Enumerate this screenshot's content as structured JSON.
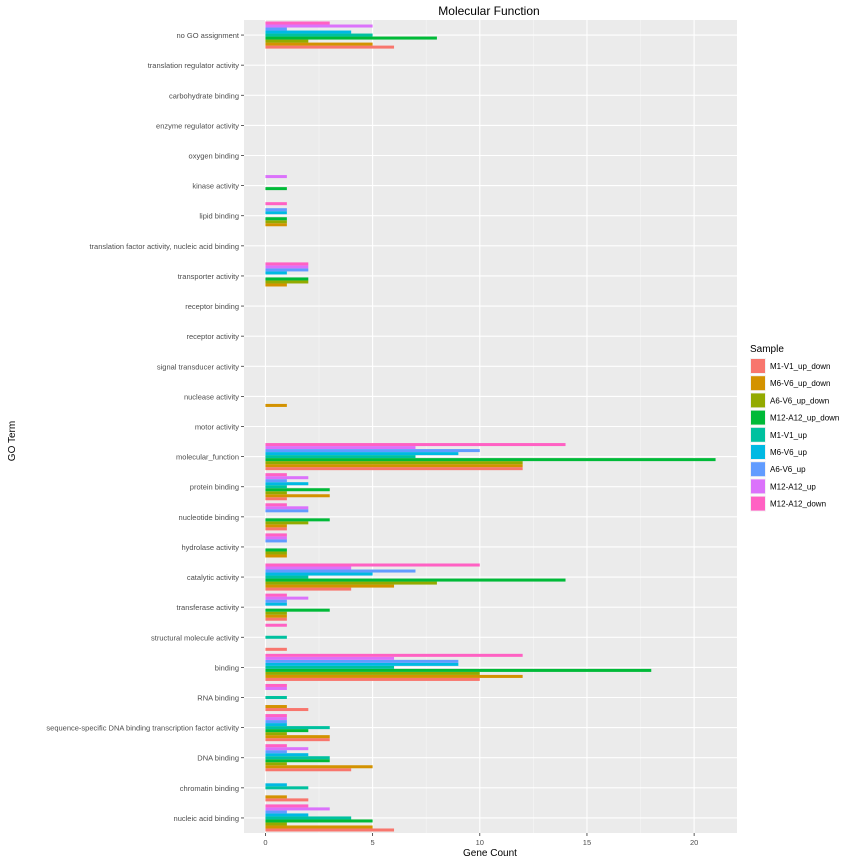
{
  "chart_data": {
    "type": "bar",
    "orientation": "horizontal",
    "title": "Molecular Function",
    "xlabel": "Gene Count",
    "ylabel": "GO Term",
    "xlim": [
      -1,
      22
    ],
    "xticks": [
      0,
      5,
      10,
      15,
      20
    ],
    "grid": true,
    "legend_title": "Sample",
    "legend_position": "right",
    "categories": [
      "nucleic acid binding",
      "chromatin binding",
      "DNA binding",
      "sequence-specific DNA binding transcription factor activity",
      "RNA binding",
      "binding",
      "structural molecule activity",
      "transferase activity",
      "catalytic activity",
      "hydrolase activity",
      "nucleotide binding",
      "protein binding",
      "molecular_function",
      "motor activity",
      "nuclease activity",
      "signal transducer activity",
      "receptor activity",
      "receptor binding",
      "transporter activity",
      "translation factor activity, nucleic acid binding",
      "lipid binding",
      "kinase activity",
      "oxygen binding",
      "enzyme regulator activity",
      "carbohydrate binding",
      "translation regulator activity",
      "no GO assignment"
    ],
    "series": [
      {
        "name": "M1-V1_up_down",
        "color": "#F8766D",
        "values": [
          6,
          2,
          4,
          3,
          2,
          10,
          1,
          1,
          4,
          0,
          1,
          1,
          12,
          0,
          0,
          0,
          0,
          0,
          0,
          0,
          0,
          0,
          0,
          0,
          0,
          0,
          6
        ]
      },
      {
        "name": "M6-V6_up_down",
        "color": "#D39200",
        "values": [
          5,
          1,
          5,
          3,
          1,
          12,
          0,
          1,
          6,
          1,
          1,
          3,
          12,
          0,
          1,
          0,
          0,
          0,
          1,
          0,
          1,
          0,
          0,
          0,
          0,
          0,
          5
        ]
      },
      {
        "name": "A6-V6_up_down",
        "color": "#93AA00",
        "values": [
          1,
          0,
          1,
          1,
          0,
          10,
          0,
          1,
          8,
          1,
          2,
          1,
          12,
          0,
          0,
          0,
          0,
          0,
          2,
          0,
          1,
          0,
          0,
          0,
          0,
          0,
          2
        ]
      },
      {
        "name": "M12-A12_up_down",
        "color": "#00BA38",
        "values": [
          5,
          0,
          3,
          2,
          0,
          18,
          0,
          3,
          14,
          1,
          3,
          3,
          21,
          0,
          0,
          0,
          0,
          0,
          2,
          0,
          1,
          1,
          0,
          0,
          0,
          0,
          8
        ]
      },
      {
        "name": "M1-V1_up",
        "color": "#00C19F",
        "values": [
          4,
          2,
          3,
          3,
          1,
          6,
          1,
          0,
          2,
          0,
          0,
          1,
          7,
          0,
          0,
          0,
          0,
          0,
          0,
          0,
          0,
          0,
          0,
          0,
          0,
          0,
          5
        ]
      },
      {
        "name": "M6-V6_up",
        "color": "#00B9E3",
        "values": [
          2,
          1,
          2,
          1,
          0,
          9,
          0,
          1,
          5,
          0,
          0,
          2,
          9,
          0,
          0,
          0,
          0,
          0,
          1,
          0,
          1,
          0,
          0,
          0,
          0,
          0,
          4
        ]
      },
      {
        "name": "A6-V6_up",
        "color": "#619CFF",
        "values": [
          1,
          0,
          1,
          1,
          0,
          9,
          0,
          1,
          7,
          1,
          2,
          1,
          10,
          0,
          0,
          0,
          0,
          0,
          2,
          0,
          1,
          0,
          0,
          0,
          0,
          0,
          1
        ]
      },
      {
        "name": "M12-A12_up",
        "color": "#DB72FB",
        "values": [
          3,
          0,
          2,
          1,
          1,
          6,
          0,
          2,
          4,
          1,
          2,
          2,
          7,
          0,
          0,
          0,
          0,
          0,
          2,
          0,
          0,
          1,
          0,
          0,
          0,
          0,
          5
        ]
      },
      {
        "name": "M12-A12_down",
        "color": "#FF61C3",
        "values": [
          2,
          0,
          1,
          1,
          1,
          12,
          1,
          1,
          10,
          1,
          1,
          1,
          14,
          0,
          0,
          0,
          0,
          0,
          2,
          0,
          1,
          0,
          0,
          0,
          0,
          0,
          3
        ]
      }
    ]
  }
}
